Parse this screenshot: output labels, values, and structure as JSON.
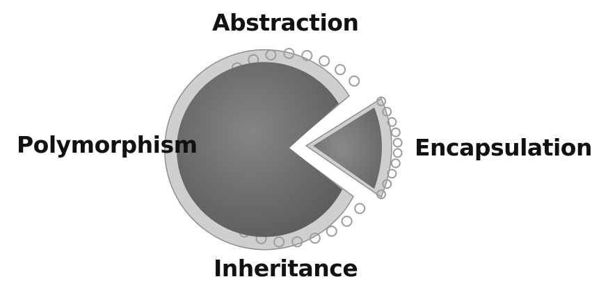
{
  "diagram": {
    "labels": {
      "top": "Abstraction",
      "left": "Polymorphism",
      "right": "Encapsulation",
      "bottom": "Inheritance"
    },
    "colors": {
      "crust": "#c9c9c9",
      "crust_edge": "#9a9a9a",
      "filling": "#7a7a7a",
      "filling_dark": "#5f5f5f",
      "text": "#111111"
    },
    "icon": "pie-with-slice-removed"
  }
}
